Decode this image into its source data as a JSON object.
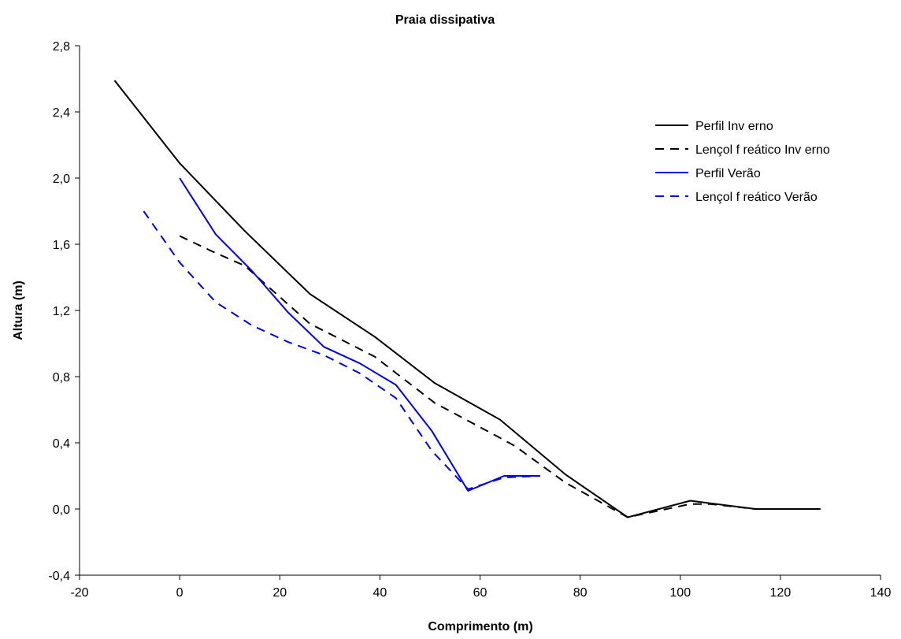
{
  "chart_data": {
    "type": "line",
    "title": "Praia dissipativa",
    "xlabel": "Comprimento (m)",
    "ylabel": "Altura (m)",
    "xlim": [
      -20,
      140
    ],
    "ylim": [
      -0.4,
      2.8
    ],
    "x_ticks": [
      -20,
      0,
      20,
      40,
      60,
      80,
      100,
      120,
      140
    ],
    "x_tick_labels": [
      "-20",
      "0",
      "20",
      "40",
      "60",
      "80",
      "100",
      "120",
      "140"
    ],
    "y_ticks": [
      -0.4,
      0.0,
      0.4,
      0.8,
      1.2,
      1.6,
      2.0,
      2.4,
      2.8
    ],
    "y_tick_labels": [
      "-0,4",
      "0,0",
      "0,4",
      "0,8",
      "1,2",
      "1,6",
      "2,0",
      "2,4",
      "2,8"
    ],
    "grid": false,
    "legend_position": "top-right",
    "series": [
      {
        "name": "Perfil Inv erno",
        "color": "#000000",
        "dash": "solid",
        "x": [
          -13,
          0,
          13,
          26,
          39,
          51,
          64,
          77,
          89.5,
          102,
          115,
          128
        ],
        "y": [
          2.59,
          2.09,
          1.68,
          1.3,
          1.04,
          0.76,
          0.54,
          0.21,
          -0.05,
          0.05,
          0.0,
          0.0
        ]
      },
      {
        "name": "Lençol f reático Inv erno",
        "color": "#000000",
        "dash": "dashed",
        "x": [
          0,
          7,
          13,
          26,
          39,
          51,
          64,
          67,
          77,
          89.5,
          102,
          106,
          115,
          128
        ],
        "y": [
          1.65,
          1.55,
          1.47,
          1.12,
          0.92,
          0.64,
          0.43,
          0.38,
          0.16,
          -0.05,
          0.03,
          0.03,
          0.0,
          0.0
        ]
      },
      {
        "name": "Perfil Verão",
        "color": "#0000ee",
        "dash": "solid",
        "x": [
          0,
          7.2,
          14.4,
          21.6,
          28.8,
          36,
          43.2,
          50.4,
          57.6,
          64.8,
          72
        ],
        "y": [
          2.0,
          1.66,
          1.44,
          1.19,
          0.98,
          0.88,
          0.75,
          0.47,
          0.11,
          0.2,
          0.2
        ]
      },
      {
        "name": "Lençol f reático Verão",
        "color": "#0000ee",
        "dash": "dashed",
        "x": [
          -7.2,
          0,
          7.2,
          14.4,
          21.6,
          28.8,
          36,
          43.2,
          50.4,
          57.6,
          64.8,
          72
        ],
        "y": [
          1.8,
          1.49,
          1.25,
          1.11,
          1.01,
          0.93,
          0.82,
          0.67,
          0.35,
          0.12,
          0.19,
          0.2
        ]
      }
    ]
  }
}
